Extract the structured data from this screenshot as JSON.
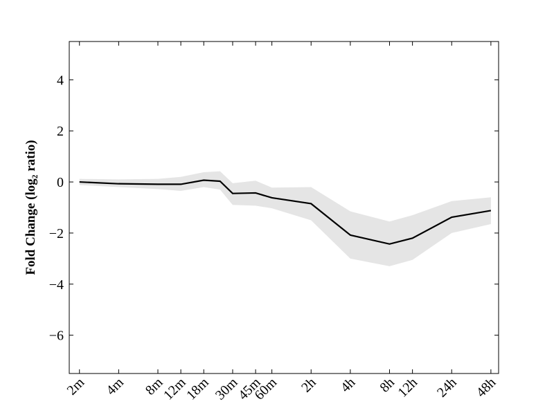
{
  "chart_data": {
    "type": "line",
    "ylabel": "Fold Change (log₂ ratio)",
    "x": [
      2,
      4,
      8,
      12,
      18,
      24,
      30,
      45,
      60,
      120,
      240,
      480,
      720,
      1440,
      2880
    ],
    "values": [
      0,
      -0.07,
      -0.09,
      -0.09,
      0.07,
      0.03,
      -0.45,
      -0.43,
      -0.62,
      -0.85,
      -2.08,
      -2.43,
      -2.2,
      -1.38,
      -1.12
    ],
    "upper": [
      0.12,
      0.1,
      0.12,
      0.2,
      0.38,
      0.42,
      -0.05,
      0.05,
      -0.22,
      -0.2,
      -1.15,
      -1.55,
      -1.3,
      -0.75,
      -0.6
    ],
    "lower": [
      -0.12,
      -0.2,
      -0.28,
      -0.35,
      -0.2,
      -0.3,
      -0.9,
      -0.93,
      -1.03,
      -1.5,
      -3.0,
      -3.3,
      -3.05,
      -2.0,
      -1.65
    ],
    "color": "#000000",
    "band_color": "#e5e5e5",
    "xscale": "log",
    "xlim": [
      1.67,
      3300
    ],
    "xticks": [
      {
        "value": 2,
        "label": "2m"
      },
      {
        "value": 4,
        "label": "4m"
      },
      {
        "value": 8,
        "label": "8m"
      },
      {
        "value": 12,
        "label": "12m"
      },
      {
        "value": 18,
        "label": "18m"
      },
      {
        "value": 30,
        "label": "30m"
      },
      {
        "value": 45,
        "label": "45m"
      },
      {
        "value": 60,
        "label": "60m"
      },
      {
        "value": 120,
        "label": "2h"
      },
      {
        "value": 240,
        "label": "4h"
      },
      {
        "value": 480,
        "label": "8h"
      },
      {
        "value": 720,
        "label": "12h"
      },
      {
        "value": 1440,
        "label": "24h"
      },
      {
        "value": 2880,
        "label": "48h"
      }
    ],
    "ylim": [
      -7.5,
      5.5
    ],
    "yticks": [
      {
        "value": -6,
        "label": "−6"
      },
      {
        "value": -4,
        "label": "−4"
      },
      {
        "value": -2,
        "label": "−2"
      },
      0,
      2,
      4
    ]
  }
}
